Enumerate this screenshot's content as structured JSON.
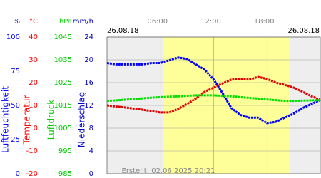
{
  "chart_data": {
    "type": "line",
    "date_left": "26.08.18",
    "date_right": "26.08.18",
    "footer": "Erstellt: 02.06.2025 20:21",
    "xlim": [
      0,
      24
    ],
    "xticks": [
      {
        "value": 6,
        "label": "06:00"
      },
      {
        "value": 12,
        "label": "12:00"
      },
      {
        "value": 18,
        "label": "18:00"
      }
    ],
    "daylight": [
      6.4,
      20.6
    ],
    "grid": true,
    "axes": [
      {
        "unit": "%",
        "label": "Luftfeuchtigkeit",
        "color": "#0000ff",
        "lim": [
          0,
          100
        ],
        "ticks": [
          0,
          25,
          50,
          75,
          100
        ]
      },
      {
        "unit": "°C",
        "label": "Temperatur",
        "color": "#ff0000",
        "lim": [
          -20,
          40
        ],
        "ticks": [
          -20,
          -10,
          0,
          10,
          20,
          30,
          40
        ]
      },
      {
        "unit": "hPa",
        "label": "Luftdruck",
        "color": "#00cc00",
        "lim": [
          985,
          1045
        ],
        "ticks": [
          985,
          995,
          1005,
          1015,
          1025,
          1035,
          1045
        ]
      },
      {
        "unit": "mm/h",
        "label": "Niederschlag",
        "color": "#0000cc",
        "lim": [
          0,
          24
        ],
        "ticks": [
          0,
          4,
          8,
          12,
          16,
          20,
          24
        ]
      }
    ],
    "x": [
      0,
      1,
      2,
      3,
      4,
      5,
      6,
      7,
      8,
      9,
      10,
      11,
      12,
      13,
      14,
      15,
      16,
      17,
      18,
      19,
      20,
      21,
      22,
      23,
      24
    ],
    "series": [
      {
        "name": "Luftfeuchtigkeit",
        "axis": 0,
        "color": "#0000ff",
        "values": [
          81,
          80,
          80,
          80,
          80,
          81,
          81,
          83,
          85,
          84,
          80,
          76,
          69,
          59,
          48,
          43,
          41,
          41,
          37,
          38,
          41,
          44,
          48,
          51,
          54
        ]
      },
      {
        "name": "Temperatur",
        "axis": 1,
        "color": "#e00000",
        "values": [
          10,
          9.5,
          9.1,
          8.6,
          8.1,
          7.5,
          6.9,
          6.9,
          8.4,
          10.6,
          13,
          16,
          17.8,
          19.7,
          21.3,
          21.6,
          21.3,
          22.5,
          21.6,
          20,
          19,
          17.8,
          16,
          14,
          12.5
        ]
      },
      {
        "name": "Luftdruck",
        "axis": 2,
        "color": "#00dd00",
        "values": [
          1017,
          1017.2,
          1017.5,
          1017.8,
          1018.1,
          1018.4,
          1018.6,
          1018.8,
          1019,
          1019.2,
          1019.4,
          1019.4,
          1019.4,
          1019.2,
          1019,
          1018.6,
          1018.3,
          1018,
          1017.6,
          1017.3,
          1017,
          1017,
          1017.1,
          1017.2,
          1017.3
        ]
      }
    ]
  }
}
